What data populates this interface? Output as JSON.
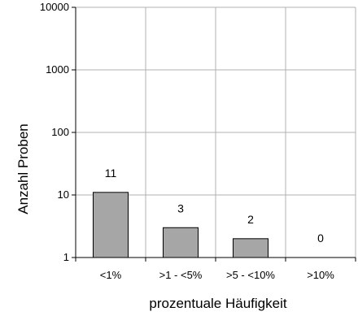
{
  "chart_data": {
    "type": "bar",
    "categories": [
      "<1%",
      ">1 - <5%",
      ">5 - <10%",
      ">10%"
    ],
    "values": [
      11,
      3,
      2,
      0
    ],
    "data_labels": [
      "11",
      "3",
      "2",
      "0"
    ],
    "xlabel": "prozentuale Häufigkeit",
    "ylabel": "Anzahl Proben",
    "y_scale": "log",
    "ylim": [
      1,
      10000
    ],
    "y_ticks": [
      1,
      10,
      100,
      1000,
      10000
    ],
    "y_tick_labels": [
      "1",
      "10",
      "100",
      "1000",
      "10000"
    ],
    "grid": true,
    "legend": "none",
    "colors": {
      "bar_fill": "#a6a6a6",
      "bar_stroke": "#000000",
      "grid": "#b0b0b0",
      "axis": "#000000"
    }
  }
}
